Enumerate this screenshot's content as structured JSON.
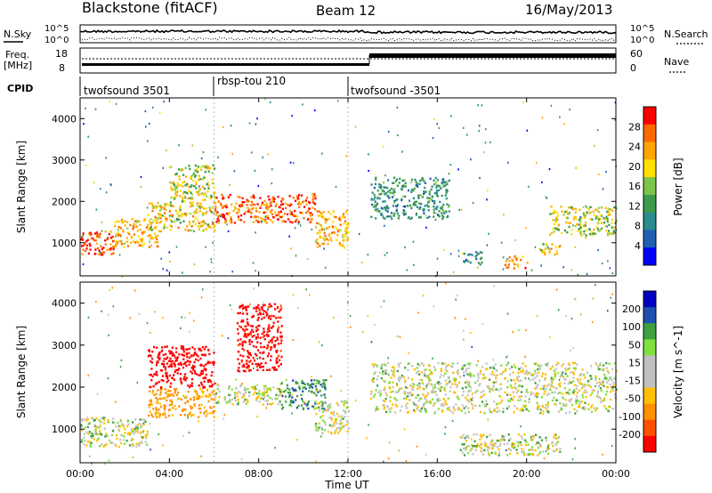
{
  "header": {
    "station": "Blackstone (fitACF)",
    "beam": "Beam 12",
    "date": "16/May/2013"
  },
  "labels": {
    "nsky": "N.Sky",
    "nsearch": "N.Search",
    "freq_line1": "Freq.",
    "freq_line2": "[MHz]",
    "nave": "Nave",
    "cpid": "CPID",
    "nsky_ticks": [
      "10^5",
      "10^0"
    ],
    "nsearch_ticks": [
      "10^5",
      "10^0"
    ],
    "freq_ticks": [
      "18",
      "8"
    ],
    "nave_ticks": [
      "60",
      "0"
    ]
  },
  "cpid_segments": [
    {
      "name": "twofsound 3501",
      "start_h": 0.0,
      "end_h": 6.0
    },
    {
      "name": "rbsp-tou 210",
      "start_h": 6.0,
      "end_h": 12.0
    },
    {
      "name": "twofsound -3501",
      "start_h": 12.0,
      "end_h": 24.0
    }
  ],
  "chart_data": [
    {
      "type": "heatmap",
      "name": "power",
      "xlabel": "Time UT",
      "ylabel": "Slant Range [km]",
      "xlim": [
        0,
        24
      ],
      "ylim": [
        200,
        4500
      ],
      "xticks": [
        "00:00",
        "04:00",
        "08:00",
        "12:00",
        "16:00",
        "20:00",
        "00:00"
      ],
      "yticks": [
        "1000",
        "2000",
        "3000",
        "4000"
      ],
      "colorbar": {
        "label": "Power [dB]",
        "ticks": [
          "4",
          "8",
          "12",
          "16",
          "20",
          "24",
          "28"
        ],
        "range": [
          0,
          32
        ],
        "colors": [
          "#0000ff",
          "#1e5fb0",
          "#2a8c8c",
          "#3c9a4a",
          "#7bc54a",
          "#ffe000",
          "#ffa500",
          "#ff6a00",
          "#ff0000"
        ]
      },
      "scatter_bands": [
        {
          "t0": 0.0,
          "t1": 1.5,
          "r0": 700,
          "r1": 1300,
          "value": 28
        },
        {
          "t0": 1.5,
          "t1": 3.5,
          "r0": 900,
          "r1": 1600,
          "value": 22
        },
        {
          "t0": 3.0,
          "t1": 6.0,
          "r0": 1300,
          "r1": 2000,
          "value": 20
        },
        {
          "t0": 4.0,
          "t1": 6.0,
          "r0": 2000,
          "r1": 2900,
          "value": 18
        },
        {
          "t0": 6.0,
          "t1": 10.5,
          "r0": 1500,
          "r1": 2200,
          "value": 26
        },
        {
          "t0": 10.5,
          "t1": 12.0,
          "r0": 900,
          "r1": 1800,
          "value": 22
        },
        {
          "t0": 13.0,
          "t1": 16.5,
          "r0": 1600,
          "r1": 2600,
          "value": 12
        },
        {
          "t0": 17.0,
          "t1": 18.0,
          "r0": 500,
          "r1": 800,
          "value": 10
        },
        {
          "t0": 19.0,
          "t1": 20.0,
          "r0": 400,
          "r1": 700,
          "value": 24
        },
        {
          "t0": 20.5,
          "t1": 21.5,
          "r0": 700,
          "r1": 1000,
          "value": 20
        },
        {
          "t0": 21.0,
          "t1": 24.0,
          "r0": 1200,
          "r1": 1900,
          "value": 18
        }
      ]
    },
    {
      "type": "heatmap",
      "name": "velocity",
      "xlabel": "Time UT",
      "ylabel": "Slant Range [km]",
      "xlim": [
        0,
        24
      ],
      "ylim": [
        200,
        4500
      ],
      "xticks": [
        "00:00",
        "04:00",
        "08:00",
        "12:00",
        "16:00",
        "20:00",
        "00:00"
      ],
      "yticks": [
        "1000",
        "2000",
        "3000",
        "4000"
      ],
      "colorbar": {
        "label": "Velocity [m s^-1]",
        "ticks": [
          "200",
          "100",
          "50",
          "15",
          "-15",
          "-50",
          "-100",
          "-200"
        ],
        "range": [
          -250,
          250
        ],
        "colors": [
          "#ff0000",
          "#ff5000",
          "#ff9000",
          "#ffc000",
          "#c0c0c0",
          "#c0c0c0",
          "#80e040",
          "#40a040",
          "#2050b0",
          "#0000c0"
        ]
      },
      "scatter_bands": [
        {
          "t0": 0.0,
          "t1": 3.0,
          "r0": 600,
          "r1": 1300,
          "value": 0
        },
        {
          "t0": 3.0,
          "t1": 6.0,
          "r0": 1300,
          "r1": 2000,
          "value": -60
        },
        {
          "t0": 3.0,
          "t1": 6.0,
          "r0": 2000,
          "r1": 3000,
          "value": -200
        },
        {
          "t0": 6.0,
          "t1": 9.0,
          "r0": 1600,
          "r1": 2100,
          "value": 0
        },
        {
          "t0": 7.0,
          "t1": 9.0,
          "r0": 2400,
          "r1": 4000,
          "value": -180
        },
        {
          "t0": 9.0,
          "t1": 11.0,
          "r0": 1500,
          "r1": 2200,
          "value": 60
        },
        {
          "t0": 10.5,
          "t1": 12.0,
          "r0": 900,
          "r1": 1700,
          "value": 0
        },
        {
          "t0": 13.0,
          "t1": 24.0,
          "r0": 1400,
          "r1": 2600,
          "value": 0
        },
        {
          "t0": 17.0,
          "t1": 21.5,
          "r0": 400,
          "r1": 900,
          "value": 0
        }
      ]
    }
  ]
}
